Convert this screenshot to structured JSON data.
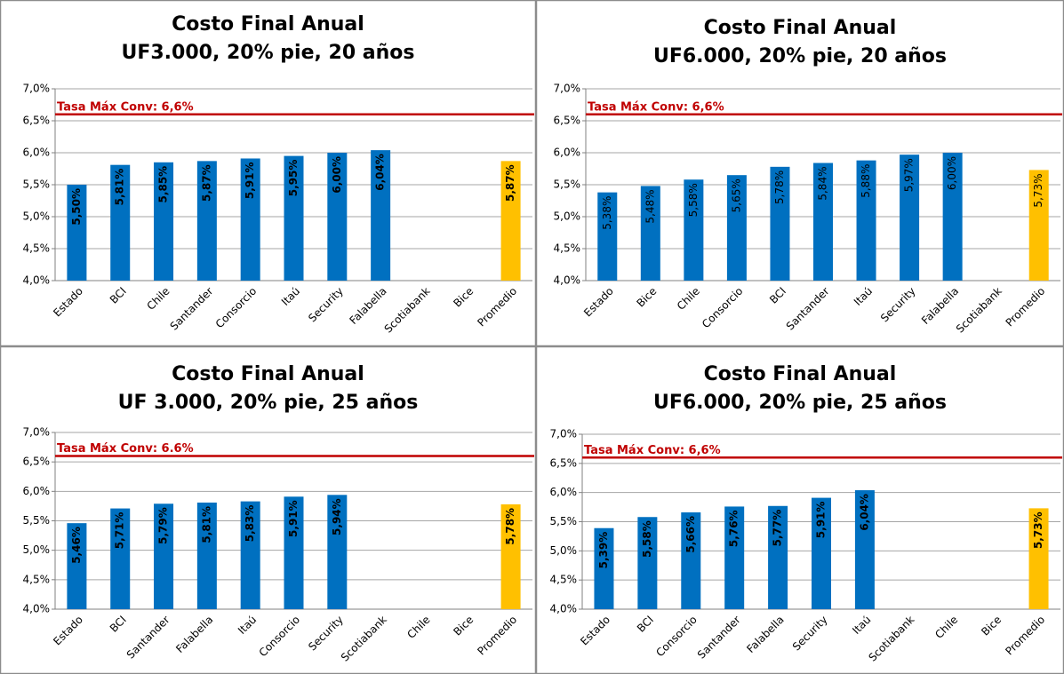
{
  "chart_data": [
    {
      "type": "bar",
      "title": "Costo Final Anual",
      "subtitle": "UF3.000, 20% pie, 20 años",
      "categories": [
        "Estado",
        "BCI",
        "Chile",
        "Santander",
        "Consorcio",
        "Itaú",
        "Security",
        "Falabella",
        "Scotiabank",
        "Bice",
        "Promedio"
      ],
      "values": [
        5.5,
        5.81,
        5.85,
        5.87,
        5.91,
        5.95,
        6.0,
        6.04,
        null,
        null,
        5.87
      ],
      "value_labels": [
        "5,50%",
        "5,81%",
        "5,85%",
        "5,87%",
        "5,91%",
        "5,95%",
        "6,00%",
        "6,04%",
        null,
        null,
        "5,87%"
      ],
      "colors": [
        "#0070C0",
        "#0070C0",
        "#0070C0",
        "#0070C0",
        "#0070C0",
        "#0070C0",
        "#0070C0",
        "#0070C0",
        "#0070C0",
        "#0070C0",
        "#FFC000"
      ],
      "value_labels_bold": true,
      "reference_line": {
        "value": 6.6,
        "label": "Tasa Máx Conv: 6,6%",
        "color": "#C00000"
      },
      "ylim": [
        4.0,
        7.0
      ],
      "yticks": [
        {
          "value": 4.0,
          "label": "4,0%"
        },
        {
          "value": 4.5,
          "label": "4,5%"
        },
        {
          "value": 5.0,
          "label": "5,0%"
        },
        {
          "value": 5.5,
          "label": "5,5%"
        },
        {
          "value": 6.0,
          "label": "6,0%"
        },
        {
          "value": 6.5,
          "label": "6,5%"
        },
        {
          "value": 7.0,
          "label": "7,0%"
        }
      ],
      "grid": true
    },
    {
      "type": "bar",
      "title": "Costo Final Anual",
      "subtitle": "UF6.000, 20% pie, 20 años",
      "categories": [
        "Estado",
        "Bice",
        "Chile",
        "Consorcio",
        "BCI",
        "Santander",
        "Itaú",
        "Security",
        "Falabella",
        "Scotiabank",
        "Promedio"
      ],
      "values": [
        5.38,
        5.48,
        5.58,
        5.65,
        5.78,
        5.84,
        5.88,
        5.97,
        6.0,
        null,
        5.73
      ],
      "value_labels": [
        "5,38%",
        "5,48%",
        "5,58%",
        "5,65%",
        "5,78%",
        "5,84%",
        "5,88%",
        "5,97%",
        "6,00%",
        null,
        "5,73%"
      ],
      "colors": [
        "#0070C0",
        "#0070C0",
        "#0070C0",
        "#0070C0",
        "#0070C0",
        "#0070C0",
        "#0070C0",
        "#0070C0",
        "#0070C0",
        "#0070C0",
        "#FFC000"
      ],
      "value_labels_bold": false,
      "reference_line": {
        "value": 6.6,
        "label": "Tasa Máx Conv: 6,6%",
        "color": "#C00000"
      },
      "ylim": [
        4.0,
        7.0
      ],
      "yticks": [
        {
          "value": 4.0,
          "label": "4,0%"
        },
        {
          "value": 4.5,
          "label": "4,5%"
        },
        {
          "value": 5.0,
          "label": "5,0%"
        },
        {
          "value": 5.5,
          "label": "5,5%"
        },
        {
          "value": 6.0,
          "label": "6,0%"
        },
        {
          "value": 6.5,
          "label": "6,5%"
        },
        {
          "value": 7.0,
          "label": "7,0%"
        }
      ],
      "grid": true
    },
    {
      "type": "bar",
      "title": "Costo Final Anual",
      "subtitle": "UF 3.000, 20% pie, 25 años",
      "categories": [
        "Estado",
        "BCI",
        "Santander",
        "Falabella",
        "Itaú",
        "Consorcio",
        "Security",
        "Scotiabank",
        "Chile",
        "Bice",
        "Promedio"
      ],
      "values": [
        5.46,
        5.71,
        5.79,
        5.81,
        5.83,
        5.91,
        5.94,
        null,
        null,
        null,
        5.78
      ],
      "value_labels": [
        "5,46%",
        "5,71%",
        "5,79%",
        "5,81%",
        "5,83%",
        "5,91%",
        "5,94%",
        null,
        null,
        null,
        "5,78%"
      ],
      "colors": [
        "#0070C0",
        "#0070C0",
        "#0070C0",
        "#0070C0",
        "#0070C0",
        "#0070C0",
        "#0070C0",
        "#0070C0",
        "#0070C0",
        "#0070C0",
        "#FFC000"
      ],
      "value_labels_bold": true,
      "reference_line": {
        "value": 6.6,
        "label": "Tasa Máx Conv: 6.6%",
        "color": "#C00000"
      },
      "ylim": [
        4.0,
        7.0
      ],
      "yticks": [
        {
          "value": 4.0,
          "label": "4,0%"
        },
        {
          "value": 4.5,
          "label": "4,5%"
        },
        {
          "value": 5.0,
          "label": "5,0%"
        },
        {
          "value": 5.5,
          "label": "5,5%"
        },
        {
          "value": 6.0,
          "label": "6,0%"
        },
        {
          "value": 6.5,
          "label": "6,5%"
        },
        {
          "value": 7.0,
          "label": "7,0%"
        }
      ],
      "grid": true
    },
    {
      "type": "bar",
      "title": "Costo Final Anual",
      "subtitle": "UF6.000, 20% pie, 25 años",
      "categories": [
        "Estado",
        "BCI",
        "Consorcio",
        "Santander",
        "Falabella",
        "Security",
        "Itaú",
        "Scotiabank",
        "Chile",
        "Bice",
        "Promedio"
      ],
      "values": [
        5.39,
        5.58,
        5.66,
        5.76,
        5.77,
        5.91,
        6.04,
        null,
        null,
        null,
        5.73
      ],
      "value_labels": [
        "5,39%",
        "5,58%",
        "5,66%",
        "5,76%",
        "5,77%",
        "5,91%",
        "6,04%",
        null,
        null,
        null,
        "5,73%"
      ],
      "colors": [
        "#0070C0",
        "#0070C0",
        "#0070C0",
        "#0070C0",
        "#0070C0",
        "#0070C0",
        "#0070C0",
        "#0070C0",
        "#0070C0",
        "#0070C0",
        "#FFC000"
      ],
      "value_labels_bold": true,
      "reference_line": {
        "value": 6.6,
        "label": "Tasa Máx Conv: 6,6%",
        "color": "#C00000"
      },
      "ylim": [
        4.0,
        7.0
      ],
      "yticks": [
        {
          "value": 4.0,
          "label": "4,0%"
        },
        {
          "value": 4.5,
          "label": "4,5%"
        },
        {
          "value": 5.0,
          "label": "5,0%"
        },
        {
          "value": 5.5,
          "label": "5,5%"
        },
        {
          "value": 6.0,
          "label": "6,0%"
        },
        {
          "value": 6.5,
          "label": "6,5%"
        },
        {
          "value": 7.0,
          "label": "7,0%"
        }
      ],
      "grid": true
    }
  ]
}
